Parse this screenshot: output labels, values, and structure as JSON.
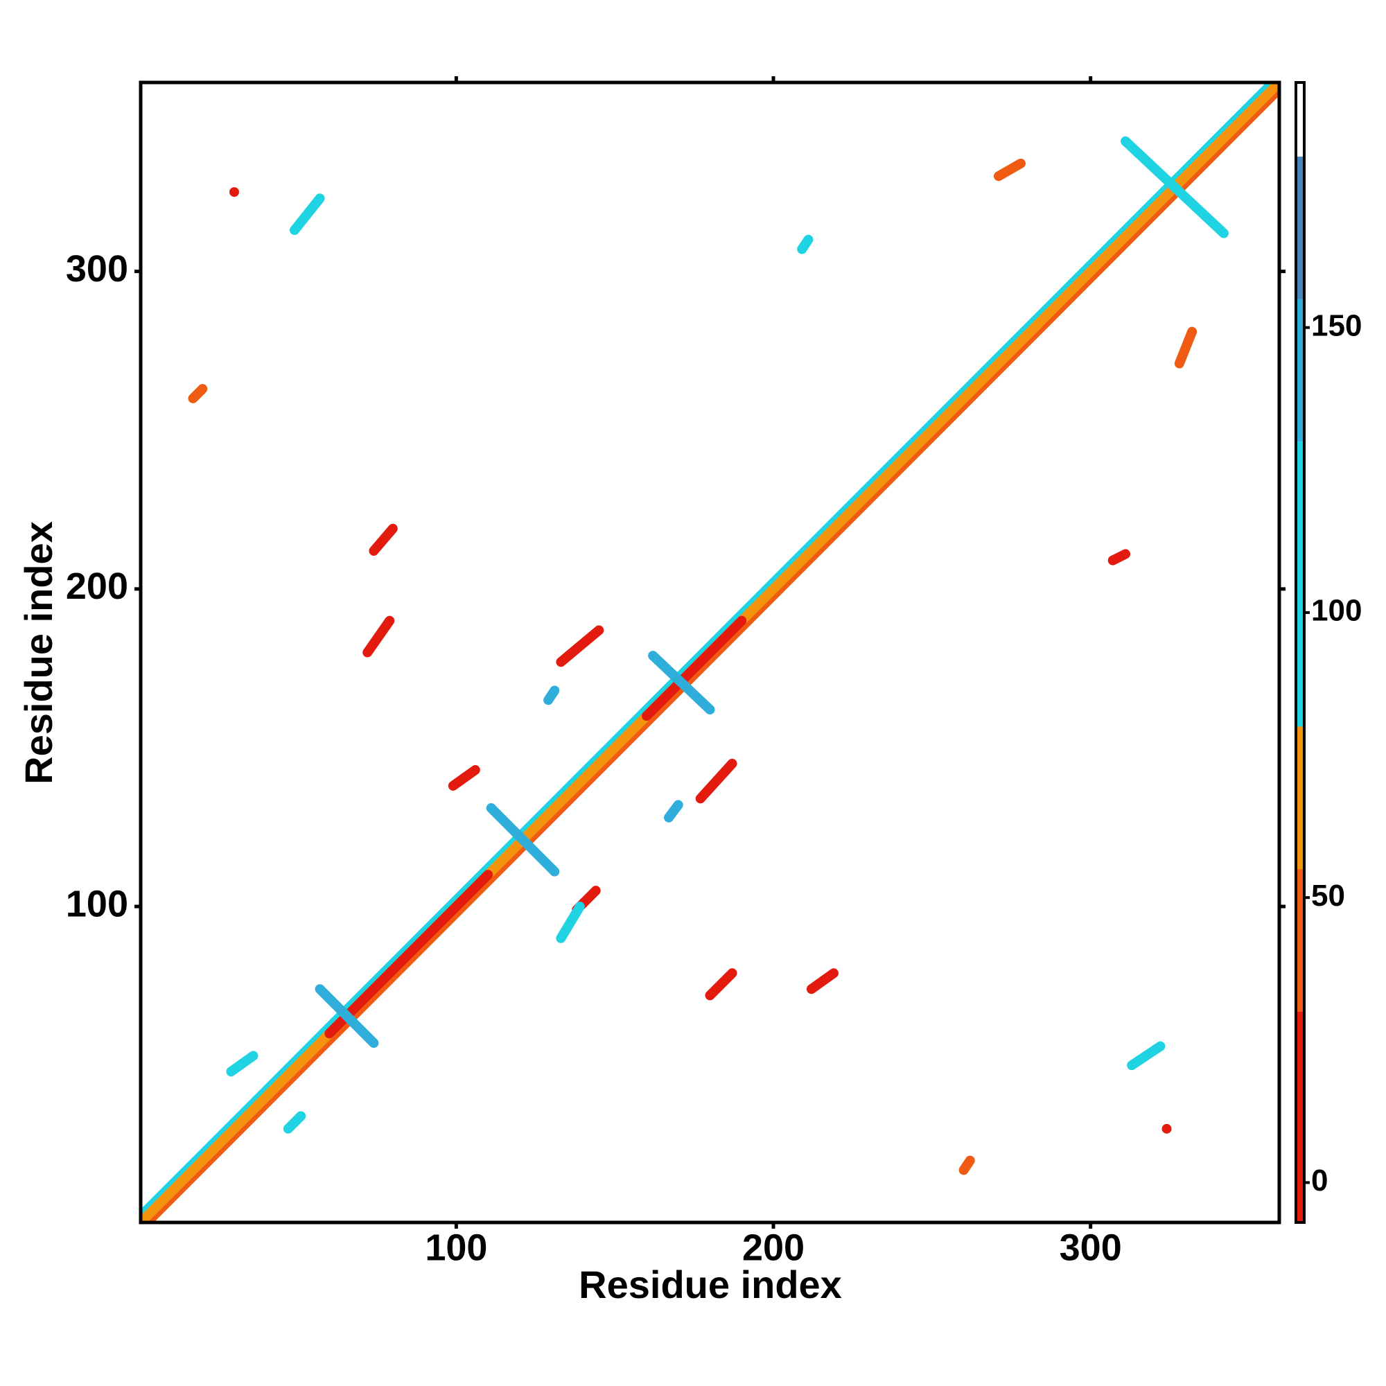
{
  "chart_data": {
    "type": "contact_map",
    "xlabel": "Residue index",
    "ylabel": "Residue index",
    "xlim": [
      0.5,
      359.5
    ],
    "ylim": [
      0.5,
      359.5
    ],
    "xticks": [
      100,
      200,
      300
    ],
    "yticks": [
      100,
      200,
      300
    ],
    "colorbar": {
      "bins": [
        -7,
        30,
        55,
        80,
        130,
        155,
        180,
        193
      ],
      "colors": [
        "#e31a0e",
        "#ef5b12",
        "#f4930e",
        "#1fd3e3",
        "#30aedb",
        "#4a86bd",
        "#ffffff"
      ],
      "ticks": [
        0,
        50,
        100,
        150
      ]
    },
    "features": [
      {
        "x": [
          1,
          357
        ],
        "y": [
          3,
          359
        ],
        "value": 90
      },
      {
        "x": [
          3,
          359
        ],
        "y": [
          1,
          357
        ],
        "value": 45
      },
      {
        "x": [
          1,
          359
        ],
        "y": [
          1,
          359
        ],
        "value": 60
      },
      {
        "x": [
          60,
          110
        ],
        "y": [
          60,
          110
        ],
        "value": 10
      },
      {
        "x": [
          160,
          190
        ],
        "y": [
          160,
          190
        ],
        "value": 10
      },
      {
        "x": [
          57,
          74
        ],
        "y": [
          74,
          57
        ],
        "value": 150
      },
      {
        "x": [
          111,
          131
        ],
        "y": [
          131,
          111
        ],
        "value": 150
      },
      {
        "x": [
          162,
          180
        ],
        "y": [
          179,
          162
        ],
        "value": 150
      },
      {
        "x": [
          311,
          342
        ],
        "y": [
          341,
          312
        ],
        "value": 100
      },
      {
        "x": [
          180,
          187
        ],
        "y": [
          72,
          79
        ],
        "value": 10
      },
      {
        "x": [
          212,
          219
        ],
        "y": [
          74,
          79
        ],
        "value": 10
      },
      {
        "x": [
          138,
          144
        ],
        "y": [
          99,
          105
        ],
        "value": 15
      },
      {
        "x": [
          99,
          106
        ],
        "y": [
          138,
          143
        ],
        "value": 15
      },
      {
        "x": [
          177,
          187
        ],
        "y": [
          134,
          145
        ],
        "value": 20
      },
      {
        "x": [
          133,
          145
        ],
        "y": [
          177,
          187
        ],
        "value": 20
      },
      {
        "x": [
          72,
          79
        ],
        "y": [
          180,
          190
        ],
        "value": 10
      },
      {
        "x": [
          74,
          80
        ],
        "y": [
          212,
          219
        ],
        "value": 15
      },
      {
        "x": [
          271,
          278
        ],
        "y": [
          330,
          334
        ],
        "value": 40
      },
      {
        "x": [
          328,
          332
        ],
        "y": [
          271,
          281
        ],
        "value": 40
      },
      {
        "x": [
          49,
          57
        ],
        "y": [
          313,
          323
        ],
        "value": 110
      },
      {
        "x": [
          313,
          322
        ],
        "y": [
          50,
          56
        ],
        "value": 110
      },
      {
        "x": [
          29,
          36
        ],
        "y": [
          48,
          53
        ],
        "value": 110
      },
      {
        "x": [
          47,
          51
        ],
        "y": [
          30,
          34
        ],
        "value": 110
      },
      {
        "x": [
          133,
          139
        ],
        "y": [
          90,
          100
        ],
        "value": 110
      },
      {
        "x": [
          129,
          131
        ],
        "y": [
          165,
          168
        ],
        "value": 150
      },
      {
        "x": [
          167,
          170
        ],
        "y": [
          128,
          132
        ],
        "value": 150
      },
      {
        "x": [
          30,
          30
        ],
        "y": [
          325,
          325
        ],
        "value": 5
      },
      {
        "x": [
          324,
          324
        ],
        "y": [
          30,
          30
        ],
        "value": 5
      },
      {
        "x": [
          17,
          20
        ],
        "y": [
          260,
          263
        ],
        "value": 40
      },
      {
        "x": [
          260,
          262
        ],
        "y": [
          17,
          20
        ],
        "value": 40
      },
      {
        "x": [
          209,
          211
        ],
        "y": [
          307,
          310
        ],
        "value": 100
      },
      {
        "x": [
          307,
          311
        ],
        "y": [
          209,
          211
        ],
        "value": 20
      }
    ]
  }
}
